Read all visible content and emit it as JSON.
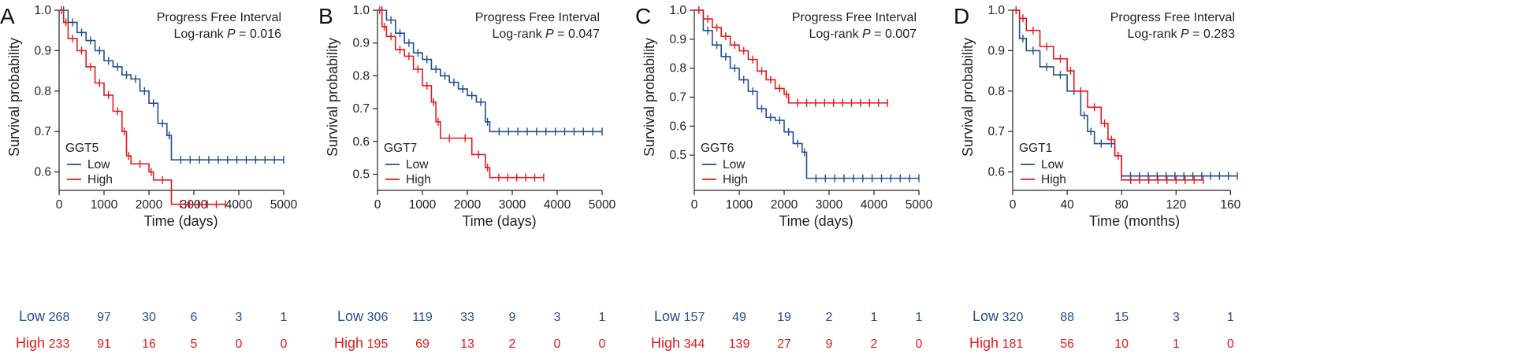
{
  "colors": {
    "low": "#1f4e96",
    "high": "#e41a1c",
    "axis": "#222222"
  },
  "chart_data": [
    {
      "type": "line",
      "panel": "A",
      "title": "Progress Free Interval",
      "pvalue_prefix": "Log-rank",
      "pvalue_symbol": "P",
      "pvalue_text": "= 0.016",
      "xlabel": "Time (days)",
      "ylabel": "Survival probability",
      "xlim": [
        0,
        5000
      ],
      "ylim": [
        0.57,
        1.0
      ],
      "xticks": [
        0,
        1000,
        2000,
        3000,
        4000,
        5000
      ],
      "yticks": [
        0.6,
        0.7,
        0.8,
        0.9,
        1.0
      ],
      "ytick_labels": [
        "0.6",
        "0.7",
        "0.8",
        "0.9",
        "1.0"
      ],
      "legend_title": "GGT5",
      "series": [
        {
          "name": "Low",
          "color": "#1f4e96",
          "x": [
            0,
            200,
            400,
            600,
            800,
            1000,
            1200,
            1400,
            1600,
            1800,
            2000,
            2200,
            2400,
            2500,
            5000
          ],
          "y": [
            1.0,
            0.97,
            0.945,
            0.925,
            0.9,
            0.875,
            0.86,
            0.84,
            0.83,
            0.8,
            0.77,
            0.72,
            0.69,
            0.63,
            0.63
          ]
        },
        {
          "name": "High",
          "color": "#e41a1c",
          "x": [
            0,
            100,
            200,
            400,
            600,
            800,
            1000,
            1200,
            1400,
            1500,
            1600,
            2000,
            2100,
            2500,
            3700
          ],
          "y": [
            1.0,
            0.97,
            0.93,
            0.9,
            0.86,
            0.82,
            0.79,
            0.75,
            0.7,
            0.64,
            0.62,
            0.6,
            0.58,
            0.52,
            0.52
          ]
        }
      ],
      "risk_table": {
        "times": [
          0,
          1000,
          2000,
          3000,
          4000,
          5000
        ],
        "rows": [
          {
            "label": "Low",
            "values": [
              "268",
              "97",
              "30",
              "6",
              "3",
              "1"
            ]
          },
          {
            "label": "High",
            "values": [
              "233",
              "91",
              "16",
              "5",
              "0",
              "0"
            ]
          }
        ]
      }
    },
    {
      "type": "line",
      "panel": "B",
      "title": "Progress Free Interval",
      "pvalue_prefix": "Log-rank",
      "pvalue_symbol": "P",
      "pvalue_text": "= 0.047",
      "xlabel": "Time (days)",
      "ylabel": "Survival probability",
      "xlim": [
        0,
        5000
      ],
      "ylim": [
        0.47,
        1.0
      ],
      "xticks": [
        0,
        1000,
        2000,
        3000,
        4000,
        5000
      ],
      "yticks": [
        0.5,
        0.6,
        0.7,
        0.8,
        0.9,
        1.0
      ],
      "ytick_labels": [
        "0.5",
        "0.6",
        "0.7",
        "0.8",
        "0.9",
        "1.0"
      ],
      "legend_title": "GGT7",
      "series": [
        {
          "name": "Low",
          "color": "#1f4e96",
          "x": [
            0,
            200,
            400,
            600,
            800,
            1000,
            1200,
            1400,
            1600,
            1800,
            2000,
            2200,
            2400,
            2500,
            5000
          ],
          "y": [
            1.0,
            0.97,
            0.93,
            0.9,
            0.87,
            0.85,
            0.82,
            0.8,
            0.78,
            0.76,
            0.74,
            0.72,
            0.66,
            0.63,
            0.63
          ]
        },
        {
          "name": "High",
          "color": "#e41a1c",
          "x": [
            0,
            100,
            200,
            400,
            600,
            800,
            1000,
            1200,
            1300,
            1400,
            1800,
            2100,
            2400,
            2500,
            3700
          ],
          "y": [
            1.0,
            0.95,
            0.92,
            0.88,
            0.86,
            0.82,
            0.77,
            0.72,
            0.66,
            0.61,
            0.61,
            0.56,
            0.52,
            0.49,
            0.49
          ]
        }
      ],
      "risk_table": {
        "times": [
          0,
          1000,
          2000,
          3000,
          4000,
          5000
        ],
        "rows": [
          {
            "label": "Low",
            "values": [
              "306",
              "119",
              "33",
              "9",
              "3",
              "1"
            ]
          },
          {
            "label": "High",
            "values": [
              "195",
              "69",
              "13",
              "2",
              "0",
              "0"
            ]
          }
        ]
      }
    },
    {
      "type": "line",
      "panel": "C",
      "title": "Progress Free Interval",
      "pvalue_prefix": "Log-rank",
      "pvalue_symbol": "P",
      "pvalue_text": "= 0.007",
      "xlabel": "Time (days)",
      "ylabel": "Survival probability",
      "xlim": [
        0,
        5000
      ],
      "ylim": [
        0.4,
        1.0
      ],
      "xticks": [
        0,
        1000,
        2000,
        3000,
        4000,
        5000
      ],
      "yticks": [
        0.5,
        0.6,
        0.7,
        0.8,
        0.9,
        1.0
      ],
      "ytick_labels": [
        "0.5",
        "0.6",
        "0.7",
        "0.8",
        "0.9",
        "1.0"
      ],
      "legend_title": "GGT6",
      "series": [
        {
          "name": "Low",
          "color": "#1f4e96",
          "x": [
            0,
            200,
            400,
            600,
            800,
            1000,
            1200,
            1400,
            1600,
            1800,
            2000,
            2200,
            2400,
            2500,
            5000
          ],
          "y": [
            1.0,
            0.93,
            0.88,
            0.84,
            0.8,
            0.76,
            0.72,
            0.66,
            0.63,
            0.62,
            0.58,
            0.54,
            0.51,
            0.42,
            0.42
          ]
        },
        {
          "name": "High",
          "color": "#e41a1c",
          "x": [
            0,
            200,
            400,
            600,
            800,
            1000,
            1200,
            1400,
            1600,
            1800,
            2000,
            2100,
            4300
          ],
          "y": [
            1.0,
            0.97,
            0.94,
            0.91,
            0.88,
            0.86,
            0.83,
            0.79,
            0.76,
            0.73,
            0.71,
            0.68,
            0.68
          ]
        }
      ],
      "risk_table": {
        "times": [
          0,
          1000,
          2000,
          3000,
          4000,
          5000
        ],
        "rows": [
          {
            "label": "Low",
            "values": [
              "157",
              "49",
              "19",
              "2",
              "1",
              "1"
            ]
          },
          {
            "label": "High",
            "values": [
              "344",
              "139",
              "27",
              "9",
              "2",
              "0"
            ]
          }
        ]
      }
    },
    {
      "type": "line",
      "panel": "D",
      "title": "Progress Free Interval",
      "pvalue_prefix": "Log-rank",
      "pvalue_symbol": "P",
      "pvalue_text": "= 0.283",
      "xlabel": "Time (months)",
      "ylabel": "Survival probability",
      "xlim": [
        0,
        165
      ],
      "ylim": [
        0.57,
        1.0
      ],
      "xticks": [
        0,
        40,
        80,
        120,
        160
      ],
      "yticks": [
        0.6,
        0.7,
        0.8,
        0.9,
        1.0
      ],
      "ytick_labels": [
        "0.6",
        "0.7",
        "0.8",
        "0.9",
        "1.0"
      ],
      "legend_title": "GGT1",
      "series": [
        {
          "name": "Low",
          "color": "#1f4e96",
          "x": [
            0,
            5,
            10,
            20,
            30,
            40,
            50,
            55,
            60,
            70,
            75,
            80,
            165
          ],
          "y": [
            1.0,
            0.93,
            0.9,
            0.86,
            0.84,
            0.8,
            0.74,
            0.7,
            0.67,
            0.67,
            0.64,
            0.59,
            0.59
          ]
        },
        {
          "name": "High",
          "color": "#e41a1c",
          "x": [
            0,
            5,
            10,
            20,
            30,
            40,
            45,
            55,
            65,
            70,
            75,
            80,
            140
          ],
          "y": [
            1.0,
            0.98,
            0.95,
            0.91,
            0.88,
            0.85,
            0.8,
            0.76,
            0.72,
            0.68,
            0.64,
            0.58,
            0.58
          ]
        }
      ],
      "risk_table": {
        "times": [
          0,
          40,
          80,
          120,
          160
        ],
        "rows": [
          {
            "label": "Low",
            "values": [
              "320",
              "88",
              "15",
              "3",
              "1"
            ]
          },
          {
            "label": "High",
            "values": [
              "181",
              "56",
              "10",
              "1",
              "0"
            ]
          }
        ]
      }
    }
  ]
}
